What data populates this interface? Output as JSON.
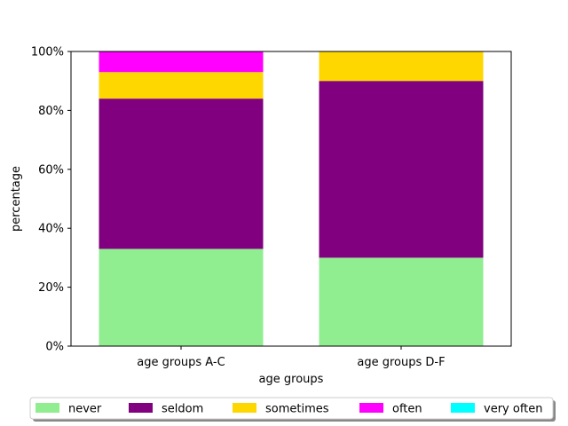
{
  "chart_data": {
    "type": "bar",
    "stacked": true,
    "categories": [
      "age groups A-C",
      "age groups D-F"
    ],
    "series": [
      {
        "name": "never",
        "color": "#90EE90",
        "values": [
          33,
          30
        ]
      },
      {
        "name": "seldom",
        "color": "#800080",
        "values": [
          51,
          60
        ]
      },
      {
        "name": "sometimes",
        "color": "#FFD700",
        "values": [
          9,
          10
        ]
      },
      {
        "name": "often",
        "color": "#FF00FF",
        "values": [
          7,
          0
        ]
      },
      {
        "name": "very often",
        "color": "#00FFFF",
        "values": [
          0,
          0
        ]
      }
    ],
    "xlabel": "age groups",
    "ylabel": "percentage",
    "ylim": [
      0,
      100
    ],
    "yticks": [
      "0%",
      "20%",
      "40%",
      "60%",
      "80%",
      "100%"
    ],
    "legend": "bottom-center"
  }
}
